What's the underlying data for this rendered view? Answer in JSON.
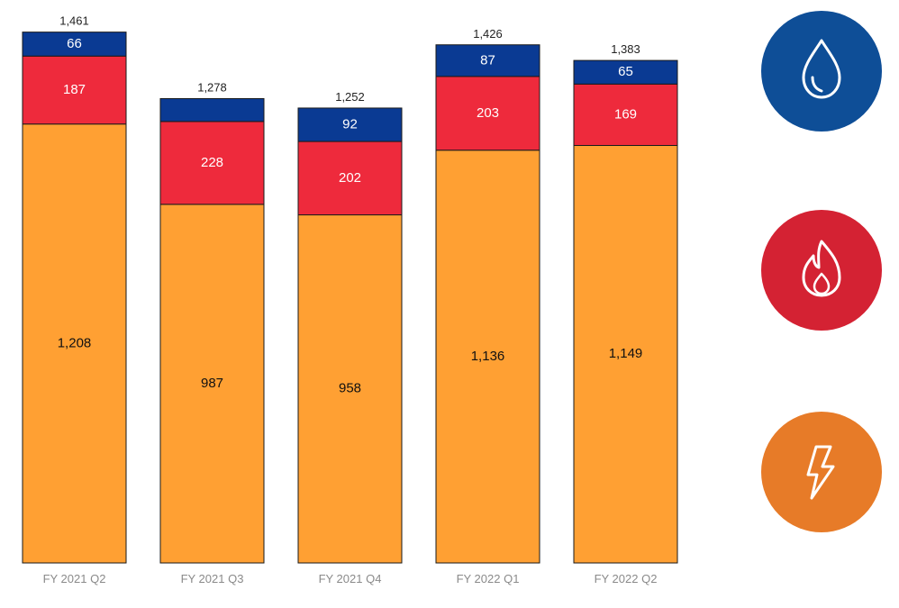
{
  "chart_data": {
    "type": "bar",
    "stacked": true,
    "title": "",
    "xlabel": "",
    "ylabel": "",
    "ylim": [
      0,
      1500
    ],
    "grid": false,
    "categories": [
      "FY 2021 Q2",
      "FY 2021 Q3",
      "FY 2021 Q4",
      "FY 2022 Q1",
      "FY 2022 Q2"
    ],
    "totals": [
      "1,461",
      "1,278",
      "1,252",
      "1,426",
      "1,383"
    ],
    "series": [
      {
        "values": [
          1208,
          987,
          958,
          1136,
          1149
        ],
        "labels": [
          "1,208",
          "987",
          "958",
          "1,136",
          "1,149"
        ],
        "color": "#FFA033",
        "text_color": "#111111"
      },
      {
        "values": [
          187,
          228,
          202,
          203,
          169
        ],
        "labels": [
          "187",
          "228",
          "202",
          "203",
          "169"
        ],
        "color": "#EE2A3C",
        "text_color": "#ffffff"
      },
      {
        "values": [
          66,
          63,
          92,
          87,
          65
        ],
        "labels": [
          "66",
          "",
          "92",
          "87",
          "65"
        ],
        "color": "#0A3A93",
        "text_color": "#ffffff"
      }
    ]
  },
  "legend_icons": [
    {
      "icon": "water-drop-icon",
      "color": "#0E4E97"
    },
    {
      "icon": "flame-icon",
      "color": "#D42233"
    },
    {
      "icon": "lightning-bolt-icon",
      "color": "#E77B28"
    }
  ]
}
